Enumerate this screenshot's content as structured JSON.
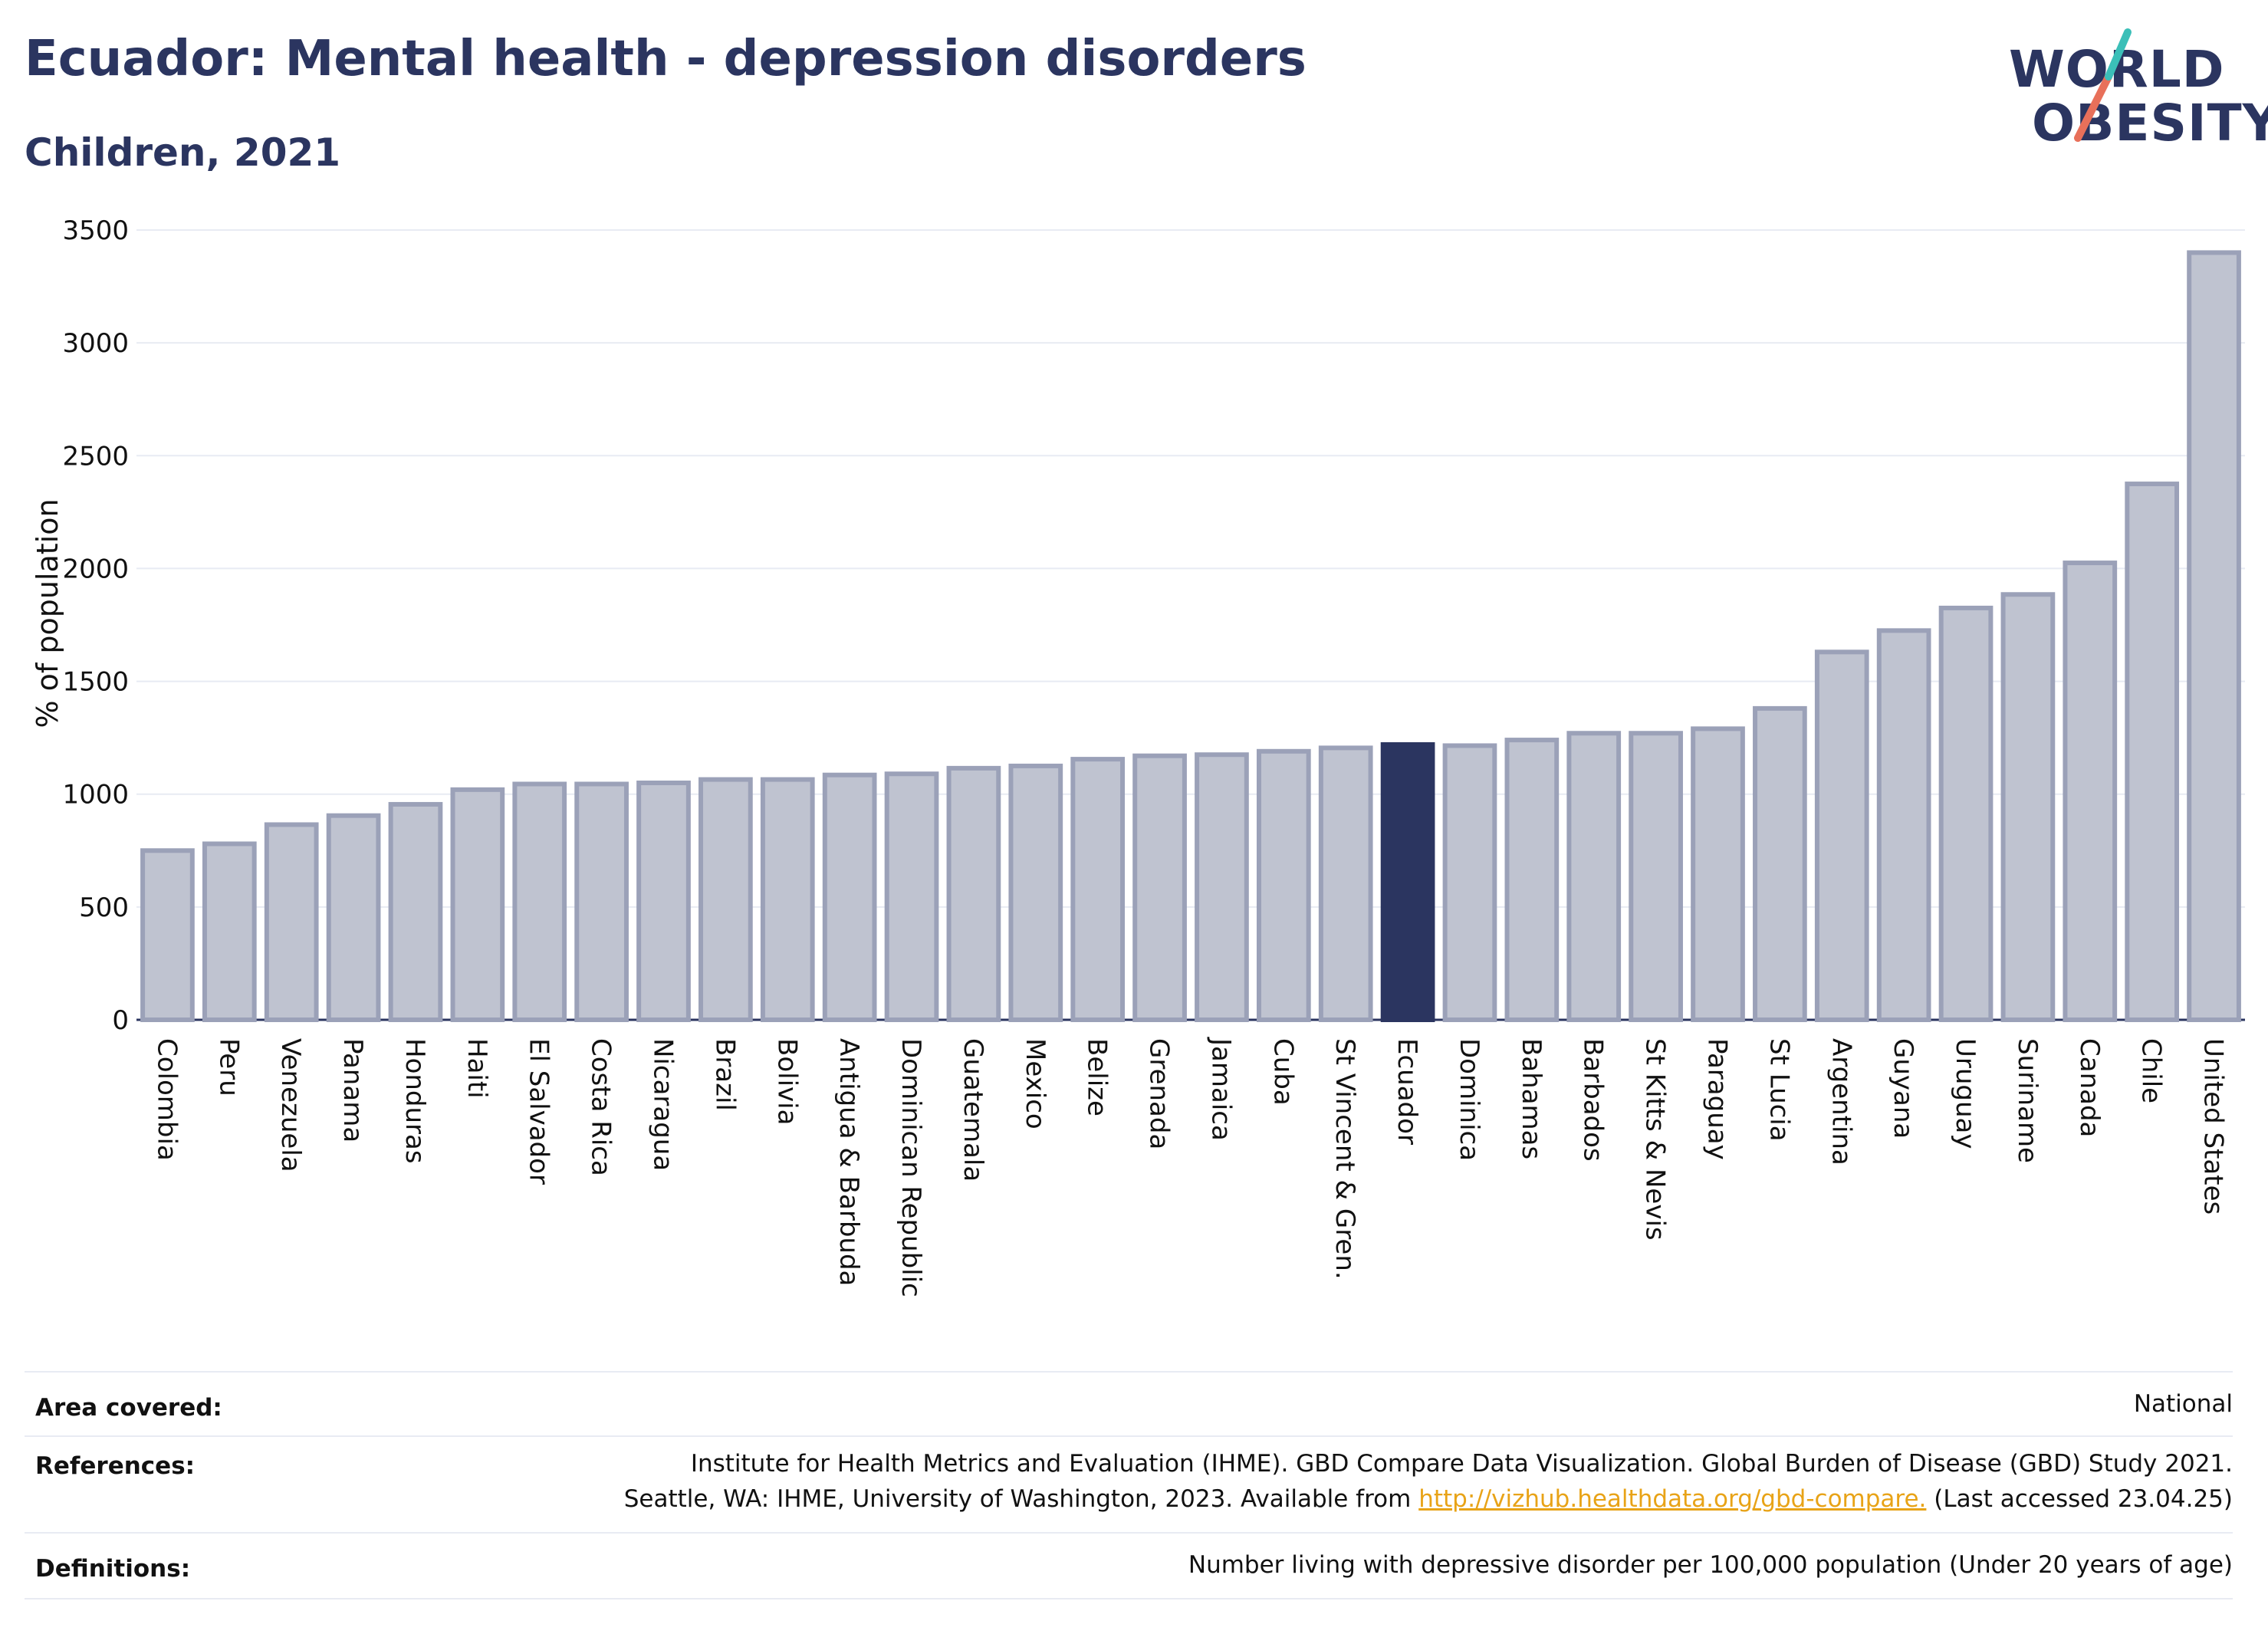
{
  "header": {
    "title": "Ecuador: Mental health - depression disorders",
    "subtitle": "Children, 2021"
  },
  "logo": {
    "line1": "WORLD",
    "line2": "OBESITY",
    "colors": {
      "teal": "#3bbfb8",
      "coral": "#e8705a",
      "navy": "#2b3560"
    }
  },
  "chart_data": {
    "type": "bar",
    "ylabel": "% of population",
    "ylim": [
      0,
      3500
    ],
    "yticks": [
      0,
      500,
      1000,
      1500,
      2000,
      2500,
      3000,
      3500
    ],
    "grid": true,
    "highlight": "Ecuador",
    "colors": {
      "bar_fill": "#bfc3d0",
      "bar_stroke": "#9ba1b8",
      "highlight_fill": "#2b3560"
    },
    "categories": [
      "Colombia",
      "Peru",
      "Venezuela",
      "Panama",
      "Honduras",
      "Haiti",
      "El Salvador",
      "Costa Rica",
      "Nicaragua",
      "Brazil",
      "Bolivia",
      "Antigua & Barbuda",
      "Dominican Republic",
      "Guatemala",
      "Mexico",
      "Belize",
      "Grenada",
      "Jamaica",
      "Cuba",
      "St Vincent & Gren.",
      "Ecuador",
      "Dominica",
      "Bahamas",
      "Barbados",
      "St Kitts & Nevis",
      "Paraguay",
      "St Lucia",
      "Argentina",
      "Guyana",
      "Uruguay",
      "Suriname",
      "Canada",
      "Chile",
      "United States"
    ],
    "values": [
      750,
      780,
      865,
      905,
      955,
      1020,
      1045,
      1045,
      1050,
      1065,
      1065,
      1085,
      1090,
      1115,
      1125,
      1155,
      1170,
      1175,
      1190,
      1205,
      1220,
      1215,
      1240,
      1270,
      1270,
      1290,
      1380,
      1630,
      1725,
      1825,
      1885,
      2025,
      2375,
      3400
    ]
  },
  "footer": {
    "area_label": "Area covered:",
    "area_value": "National",
    "references_label": "References:",
    "references_line1": "Institute for Health Metrics and Evaluation (IHME). GBD Compare Data Visualization. Global Burden of Disease (GBD) Study 2021.",
    "references_line2_pre": "Seattle, WA: IHME, University of Washington, 2023. Available from ",
    "references_link": "http://vizhub.healthdata.org/gbd-compare.",
    "references_line2_post": " (Last accessed 23.04.25)",
    "definitions_label": "Definitions:",
    "definitions_value": "Number living with depressive disorder per 100,000 population (Under 20 years of age)"
  }
}
